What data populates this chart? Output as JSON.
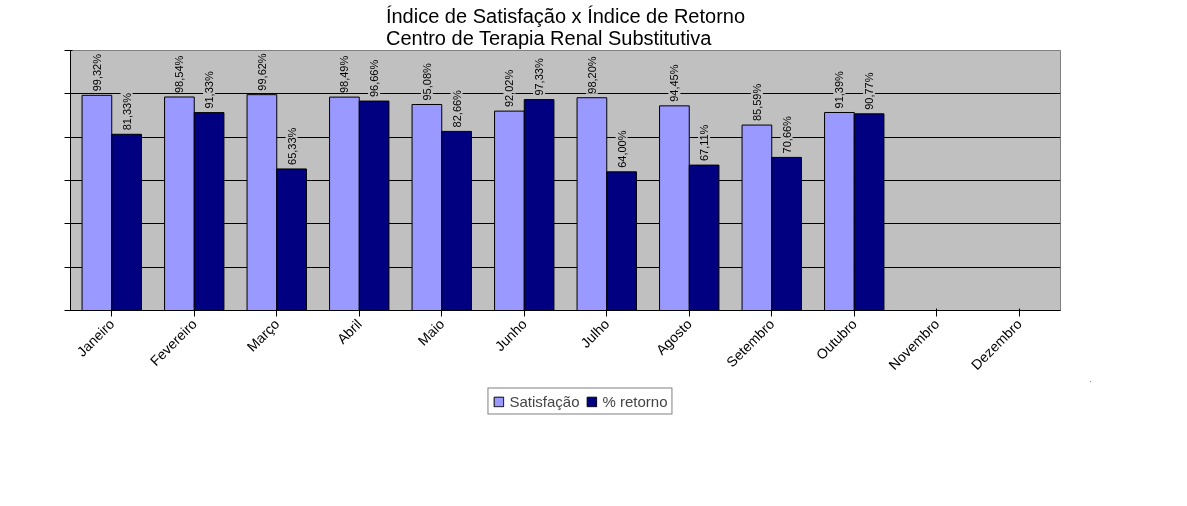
{
  "chart_data": {
    "type": "bar",
    "title": "Índice de Satisfação x Índice de Retorno\nCentro de Terapia Renal Substitutiva",
    "categories": [
      "Janeiro",
      "Fevereiro",
      "Março",
      "Abril",
      "Maio",
      "Junho",
      "Julho",
      "Agosto",
      "Setembro",
      "Outubro",
      "Novembro",
      "Dezembro"
    ],
    "series": [
      {
        "name": "Satisfação",
        "color": "#9999ff",
        "values": [
          99.32,
          98.54,
          99.62,
          98.49,
          95.08,
          92.02,
          98.2,
          94.45,
          85.59,
          91.39,
          null,
          null
        ],
        "value_labels": [
          "99,32%",
          "98,54%",
          "99,62%",
          "98,49%",
          "95,08%",
          "92,02%",
          "98,20%",
          "94,45%",
          "85,59%",
          "91,39%",
          null,
          null
        ]
      },
      {
        "name": "% retorno",
        "color": "#000080",
        "values": [
          81.33,
          91.33,
          65.33,
          96.66,
          82.66,
          97.33,
          64.0,
          67.11,
          70.66,
          90.77,
          null,
          null
        ],
        "value_labels": [
          "81,33%",
          "91,33%",
          "65,33%",
          "96,66%",
          "82,66%",
          "97,33%",
          "64,00%",
          "67,11%",
          "70,66%",
          "90,77%",
          null,
          null
        ]
      }
    ],
    "ylim": [
      0,
      120
    ],
    "yticks": [
      {
        "value": 0,
        "label": null
      },
      {
        "value": 20,
        "label": null
      },
      {
        "value": 40,
        "label": null
      },
      {
        "value": 60,
        "label": null
      },
      {
        "value": 80,
        "label": null
      },
      {
        "value": 100,
        "label": null
      },
      {
        "value": 120,
        "label": null
      }
    ],
    "grid": "y",
    "legend": "bottom",
    "tick_labels": "x"
  }
}
